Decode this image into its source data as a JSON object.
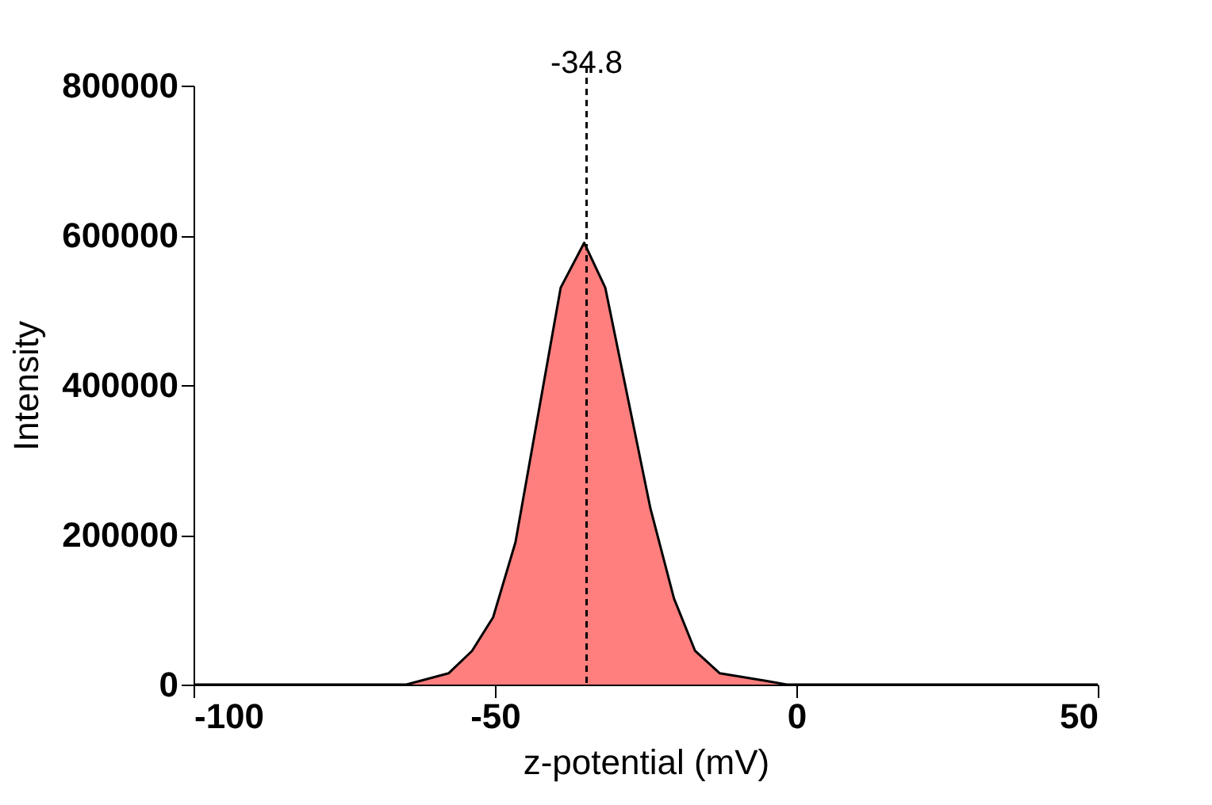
{
  "chart_data": {
    "type": "area",
    "xlabel": "z-potential (mV)",
    "ylabel": "Intensity",
    "x": [
      -100,
      -64.7,
      -57.7,
      -53.8,
      -50.3,
      -46.6,
      -39.1,
      -35.2,
      -31.7,
      -24.2,
      -20.3,
      -16.8,
      -12.7,
      -5.1,
      -1.6,
      50
    ],
    "series": [
      {
        "color": "#ff7f7f",
        "values": [
          0,
          0,
          15000,
          45000,
          90000,
          190000,
          530000,
          590000,
          530000,
          235000,
          115000,
          45000,
          15000,
          5000,
          0,
          0
        ]
      }
    ],
    "xlim": [
      -100,
      50
    ],
    "xticks": [
      -100,
      -50,
      0,
      50
    ],
    "ylim": [
      0,
      800000
    ],
    "yticks": [
      0,
      200000,
      400000,
      600000,
      800000
    ],
    "grid": false,
    "ref_lines": [
      {
        "axis": "x",
        "value": -34.8,
        "label": "-34.8",
        "line_style": "dashed"
      }
    ]
  }
}
